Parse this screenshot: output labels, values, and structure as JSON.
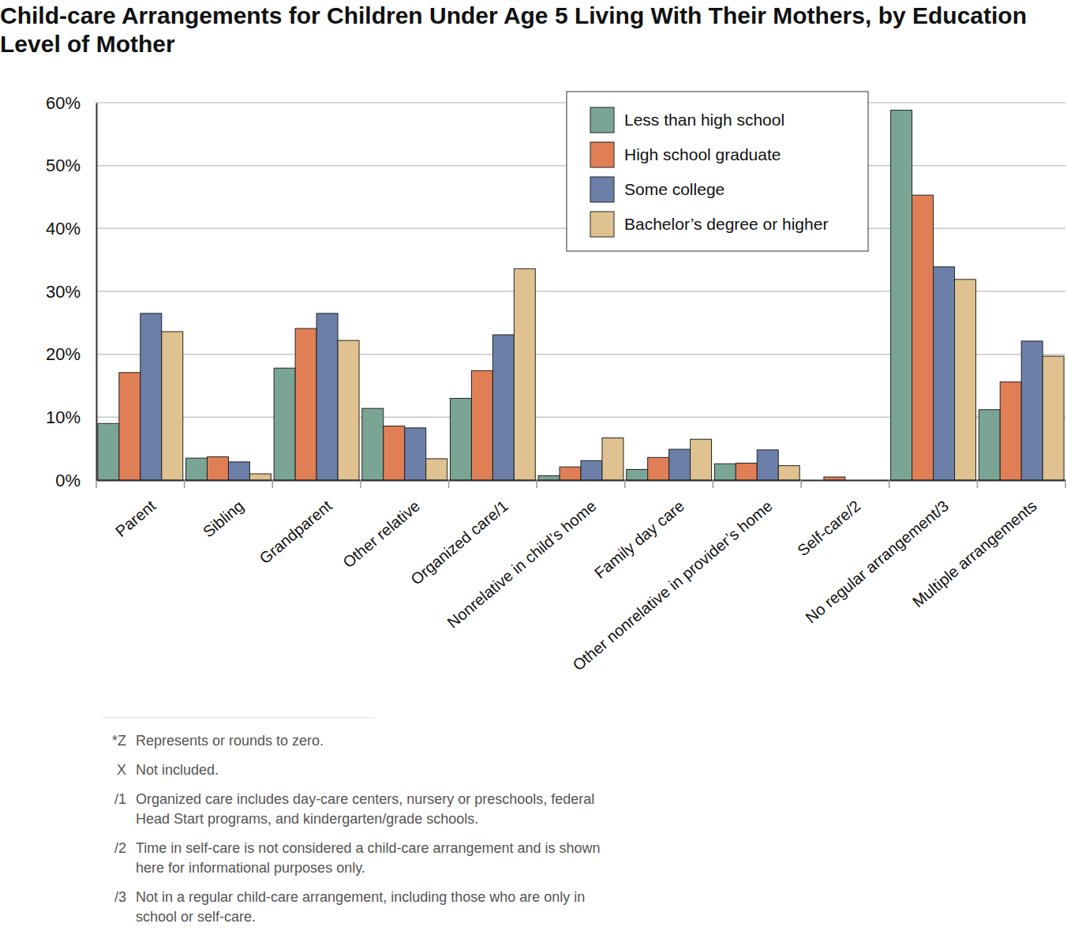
{
  "chart_data": {
    "type": "bar",
    "title": "Child-care Arrangements for Children Under Age 5 Living With Their Mothers, by Education Level of Mother",
    "categories": [
      "Parent",
      "Sibling",
      "Grandparent",
      "Other relative",
      "Organized care/1",
      "Nonrelative in child’s home",
      "Family day care",
      "Other nonrelative in provider’s home",
      "Self-care/2",
      "No regular arrangement/3",
      "Multiple arrangements"
    ],
    "series": [
      {
        "name": "Less than high school",
        "color": "#7aa595",
        "values": [
          9.0,
          3.5,
          17.8,
          11.4,
          13.0,
          0.7,
          1.7,
          2.6,
          0,
          58.8,
          11.2
        ]
      },
      {
        "name": "High school graduate",
        "color": "#e07f55",
        "values": [
          17.1,
          3.7,
          24.1,
          8.6,
          17.4,
          2.1,
          3.6,
          2.7,
          0.5,
          45.3,
          15.6
        ]
      },
      {
        "name": "Some college",
        "color": "#6b7fa8",
        "values": [
          26.5,
          2.9,
          26.5,
          8.3,
          23.1,
          3.1,
          4.9,
          4.8,
          0,
          33.9,
          22.1
        ]
      },
      {
        "name": "Bachelor’s degree or higher",
        "color": "#dfc28f",
        "values": [
          23.6,
          1.0,
          22.2,
          3.4,
          33.6,
          6.7,
          6.5,
          2.3,
          0,
          31.9,
          19.7
        ]
      }
    ],
    "ylim": [
      0,
      60
    ],
    "yticks": [
      {
        "value": 0,
        "label": "0%"
      },
      {
        "value": 10,
        "label": "10%"
      },
      {
        "value": 20,
        "label": "20%"
      },
      {
        "value": 30,
        "label": "30%"
      },
      {
        "value": 40,
        "label": "40%"
      },
      {
        "value": 50,
        "label": "50%"
      },
      {
        "value": 60,
        "label": "60%"
      }
    ],
    "grid": true,
    "legend": "upper right",
    "footnotes": [
      {
        "symbol": "*Z",
        "text": "Represents or rounds to zero."
      },
      {
        "symbol": "X",
        "text": "Not included."
      },
      {
        "symbol": "/1",
        "text": "Organized care includes day-care centers, nursery or preschools, federal Head Start programs, and kindergarten/grade schools."
      },
      {
        "symbol": "/2",
        "text": "Time in self-care is not considered a child-care arrangement and is shown here for informational purposes only."
      },
      {
        "symbol": "/3",
        "text": "Not in a regular child-care arrangement, including those who are only in school or self-care."
      }
    ]
  }
}
